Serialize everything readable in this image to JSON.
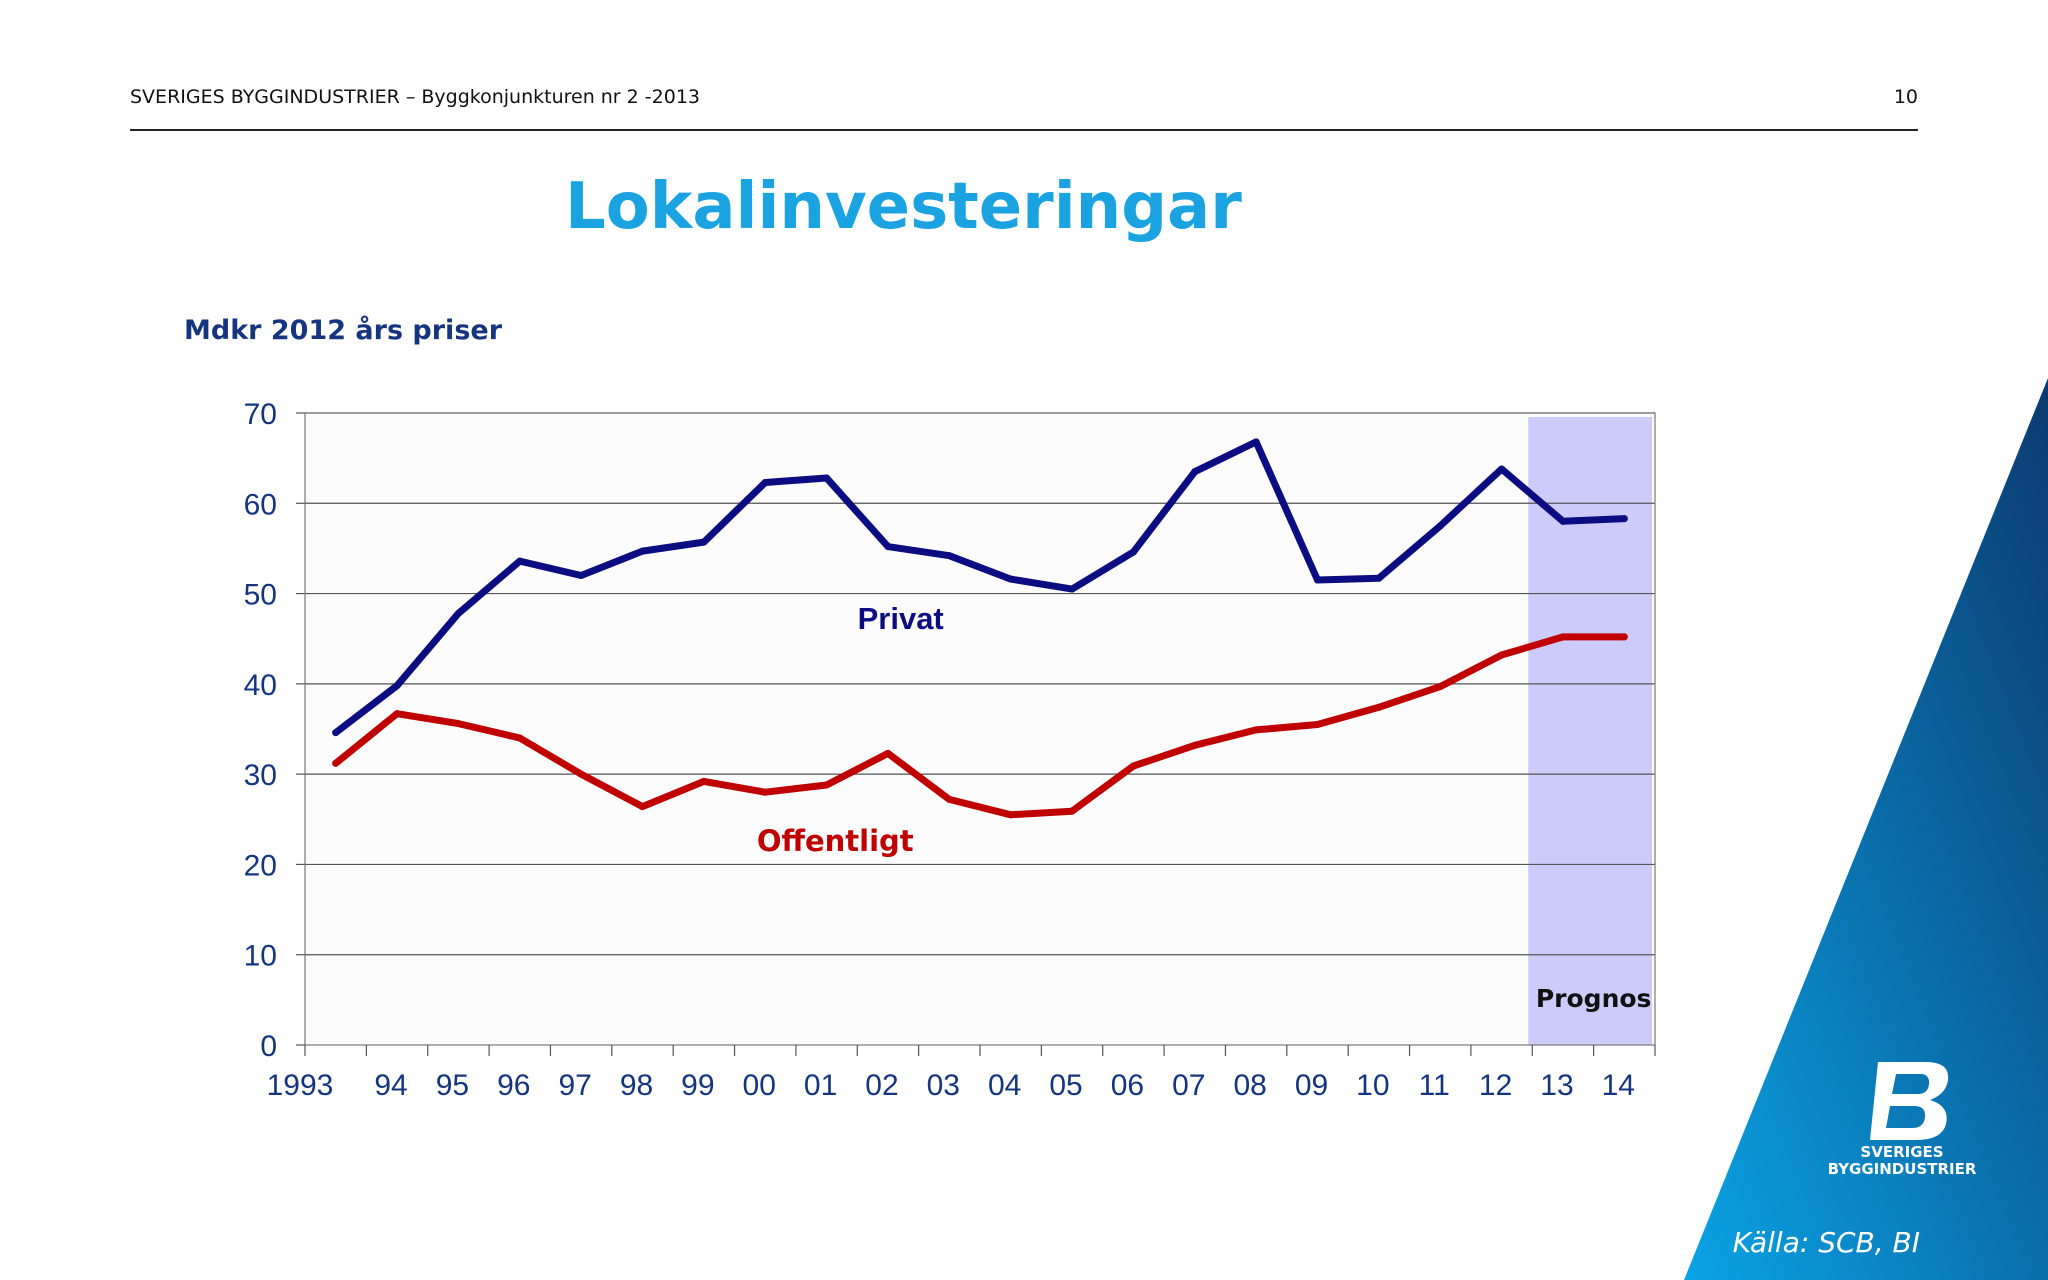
{
  "header": {
    "title": "SVERIGES BYGGINDUSTRIER – Byggkonjunkturen nr 2 -2013",
    "page_number": "10"
  },
  "slide": {
    "title": "Lokalinvesteringar",
    "unit_label": "Mdkr 2012 års priser",
    "source": "Källa: SCB, BI"
  },
  "logo": {
    "line1": "SVERIGES",
    "line2": "BYGGINDUSTRIER"
  },
  "colors": {
    "title": "#1aa3e0",
    "privat": "#0d0d82",
    "offentligt": "#c00000",
    "forecast_band": "#cccbfa",
    "axis_text": "#16357f",
    "accent_gradient_dark": "#0b3a70",
    "accent_gradient_light": "#0aa4e6"
  },
  "chart_data": {
    "type": "line",
    "x": [
      "1993",
      "94",
      "95",
      "96",
      "97",
      "98",
      "99",
      "00",
      "01",
      "02",
      "03",
      "04",
      "05",
      "06",
      "07",
      "08",
      "09",
      "10",
      "11",
      "12",
      "13",
      "14"
    ],
    "x_tick_labels": [
      "1993",
      "94",
      "95",
      "96",
      "97",
      "98",
      "99",
      "00",
      "01",
      "02",
      "03",
      "04",
      "05",
      "06",
      "07",
      "08",
      "09",
      "10",
      "11",
      "12",
      "13",
      "14"
    ],
    "y_ticks": [
      0,
      10,
      20,
      30,
      40,
      50,
      60,
      70
    ],
    "ylim": [
      0,
      70
    ],
    "grid": true,
    "series": [
      {
        "name": "Privat",
        "color": "#0d0d82",
        "values": [
          34.6,
          39.8,
          47.8,
          53.6,
          52.0,
          54.7,
          55.7,
          62.3,
          62.8,
          55.2,
          54.2,
          51.6,
          50.5,
          54.6,
          63.5,
          66.8,
          51.5,
          51.7,
          57.5,
          63.8,
          58.0,
          58.3
        ]
      },
      {
        "name": "Offentligt",
        "color": "#c00000",
        "values": [
          31.2,
          36.7,
          35.6,
          34.0,
          30.0,
          26.4,
          29.2,
          28.0,
          28.8,
          32.3,
          27.2,
          25.5,
          25.9,
          30.9,
          33.2,
          34.9,
          35.5,
          37.4,
          39.7,
          43.2,
          45.2,
          45.2
        ]
      }
    ],
    "annotations": [
      {
        "text": "Privat",
        "series": "Privat"
      },
      {
        "text": "Offentligt",
        "series": "Offentligt"
      },
      {
        "text": "Prognos",
        "region": [
          "13",
          "14"
        ]
      }
    ]
  }
}
